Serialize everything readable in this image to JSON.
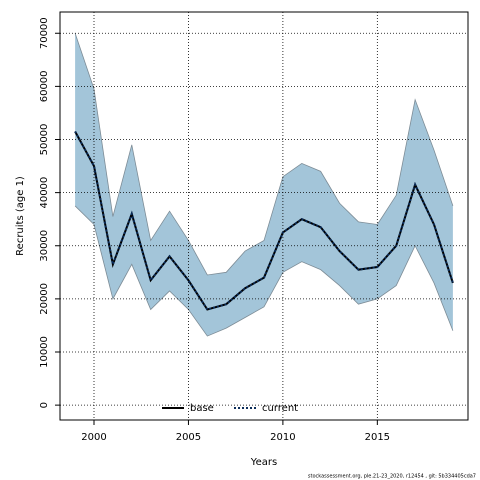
{
  "chart_data": {
    "type": "line",
    "x_label": "Years",
    "y_label": "Recruits (age 1)",
    "footnote": "stockassessment.org, ple.21-23_2020, r12454 , git: 5b334405cda7",
    "x": [
      1999,
      2000,
      2001,
      2002,
      2003,
      2004,
      2005,
      2006,
      2007,
      2008,
      2009,
      2010,
      2011,
      2012,
      2013,
      2014,
      2015,
      2016,
      2017,
      2018,
      2019
    ],
    "series": [
      {
        "name": "base",
        "color": "#000000",
        "dash": false,
        "values": [
          51500,
          45000,
          26500,
          36000,
          23500,
          28000,
          23500,
          18000,
          19000,
          22000,
          24000,
          32500,
          35000,
          33500,
          29000,
          25500,
          26000,
          30000,
          41500,
          34000,
          23000
        ]
      },
      {
        "name": "current",
        "color": "#0b2d5a",
        "dash": true,
        "values": [
          51500,
          45000,
          26500,
          36000,
          23500,
          28000,
          23500,
          18000,
          19000,
          22000,
          24000,
          32500,
          35000,
          33500,
          29000,
          25500,
          26000,
          30000,
          41500,
          34000,
          23000
        ]
      }
    ],
    "band": {
      "color": "#a3c5d9",
      "edge_color": "#7d8c96",
      "upper": [
        70000,
        59500,
        35500,
        49000,
        31000,
        36500,
        31000,
        24500,
        25000,
        29000,
        31000,
        43000,
        45500,
        44000,
        38000,
        34500,
        34000,
        39500,
        57500,
        48000,
        37500
      ],
      "lower": [
        37500,
        34000,
        20000,
        26500,
        18000,
        21500,
        18000,
        13000,
        14500,
        16500,
        18500,
        25000,
        27000,
        25500,
        22500,
        19000,
        20000,
        22500,
        30000,
        23000,
        14000
      ]
    },
    "xlim": [
      1998.2,
      2019.8
    ],
    "ylim": [
      -2800,
      74000
    ],
    "xticks": [
      2000,
      2005,
      2010,
      2015
    ],
    "yticks": [
      0,
      10000,
      20000,
      30000,
      40000,
      50000,
      60000,
      70000
    ],
    "grid": true,
    "legend": "bottom"
  }
}
